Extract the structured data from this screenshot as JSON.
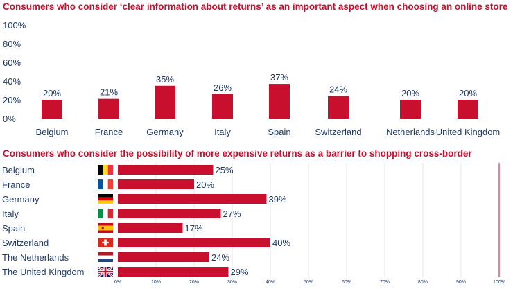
{
  "colors": {
    "bar": "#c8102e",
    "text": "#1f3864",
    "grid": "#e4e4e4"
  },
  "chart_data": [
    {
      "type": "bar",
      "title": "Consumers who consider ‘clear information about returns’ as an important aspect when choosing an online store",
      "categories": [
        "Belgium",
        "France",
        "Germany",
        "Italy",
        "Spain",
        "Switzerland",
        "Netherlands",
        "United Kingdom"
      ],
      "values": [
        20,
        21,
        35,
        26,
        37,
        24,
        20,
        20
      ],
      "value_labels": [
        "20%",
        "21%",
        "35%",
        "26%",
        "37%",
        "24%",
        "20%",
        "20%"
      ],
      "ylim": [
        0,
        100
      ],
      "yticks": [
        "0%",
        "20%",
        "40%",
        "60%",
        "80%",
        "100%"
      ],
      "grid": false
    },
    {
      "type": "bar",
      "orientation": "horizontal",
      "title": "Consumers who consider the possibility of more expensive returns as a barrier to shopping cross-border",
      "categories": [
        "Belgium",
        "France",
        "Germany",
        "Italy",
        "Spain",
        "Switzerland",
        "The Netherlands",
        "The United Kingdom"
      ],
      "flags": [
        "belgium-flag-icon",
        "france-flag-icon",
        "germany-flag-icon",
        "italy-flag-icon",
        "spain-flag-icon",
        "switzerland-flag-icon",
        "netherlands-flag-icon",
        "united-kingdom-flag-icon"
      ],
      "values": [
        25,
        20,
        39,
        27,
        17,
        40,
        24,
        29
      ],
      "value_labels": [
        "25%",
        "20%",
        "39%",
        "27%",
        "17%",
        "40%",
        "24%",
        "29%"
      ],
      "xlim": [
        0,
        100
      ],
      "xticks": [
        "0%",
        "10%",
        "20%",
        "30%",
        "40%",
        "50%",
        "60%",
        "70%",
        "80%",
        "90%",
        "100%"
      ],
      "grid": true
    }
  ]
}
